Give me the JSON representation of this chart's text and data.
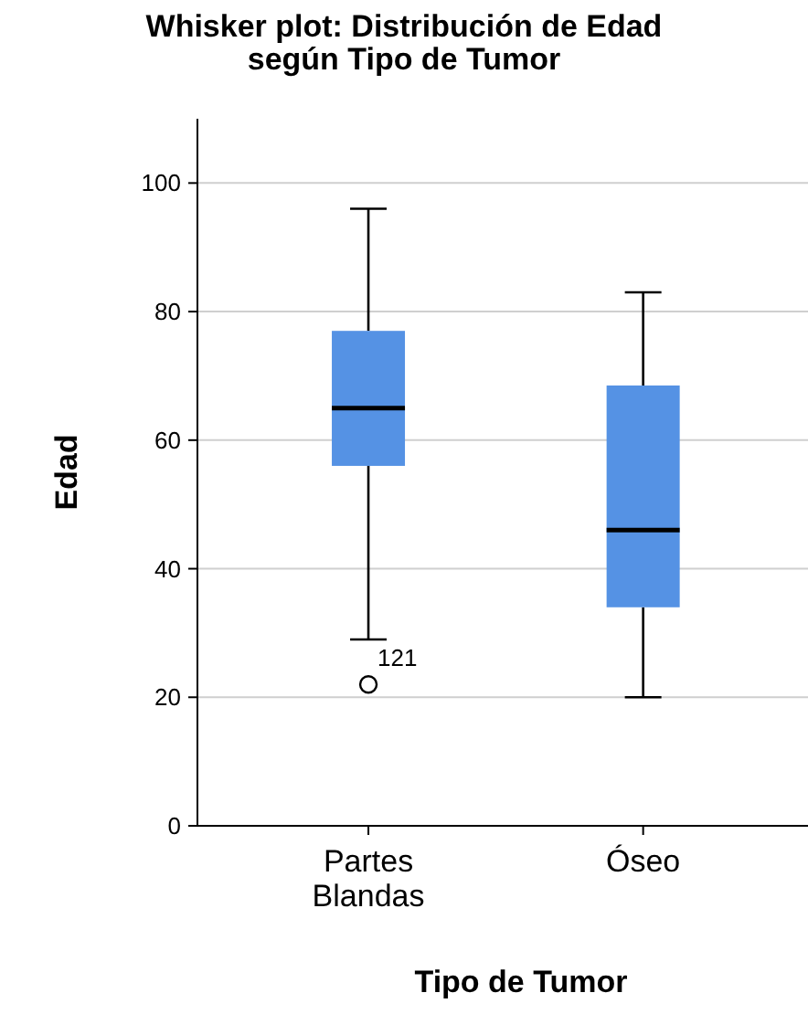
{
  "chart_data": {
    "type": "box",
    "title": "Whisker plot: Distribución de Edad según Tipo de Tumor",
    "xlabel": "Tipo de Tumor",
    "ylabel": "Edad",
    "categories": [
      "Partes Blandas",
      "Óseo"
    ],
    "boxes": [
      {
        "low": 29,
        "q1": 56,
        "median": 65,
        "q3": 77,
        "high": 96,
        "outliers": [
          22
        ]
      },
      {
        "low": 20,
        "q1": 34,
        "median": 46,
        "q3": 68.5,
        "high": 83
      }
    ],
    "color": "#5592e4",
    "ylim": [
      0,
      110
    ],
    "yticks": [
      0,
      20,
      40,
      60,
      80,
      100
    ],
    "grid": "y",
    "annotations": [
      "121"
    ]
  }
}
